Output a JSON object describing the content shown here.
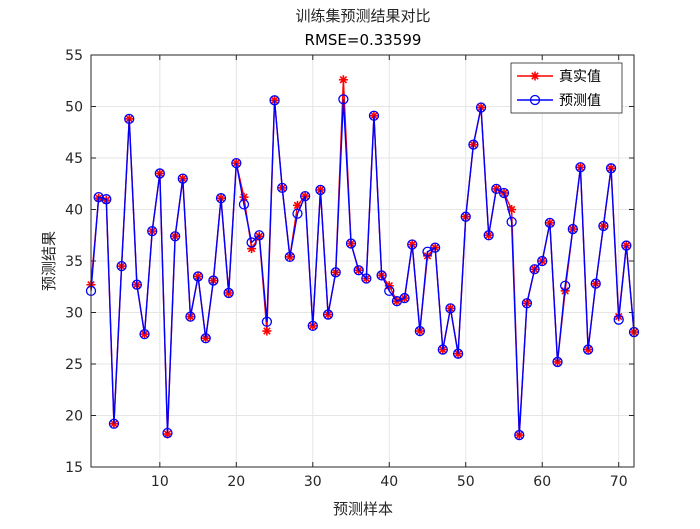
{
  "chart_data": {
    "type": "line",
    "title": "训练集预测结果对比",
    "subtitle": "RMSE=0.33599",
    "xlabel": "预测样本",
    "ylabel": "预测结果",
    "xlim": [
      1,
      72
    ],
    "ylim": [
      15,
      55
    ],
    "xticks": [
      10,
      20,
      30,
      40,
      50,
      60,
      70
    ],
    "yticks": [
      15,
      20,
      25,
      30,
      35,
      40,
      45,
      50,
      55
    ],
    "grid": true,
    "legend_position": "top-right",
    "x": [
      1,
      2,
      3,
      4,
      5,
      6,
      7,
      8,
      9,
      10,
      11,
      12,
      13,
      14,
      15,
      16,
      17,
      18,
      19,
      20,
      21,
      22,
      23,
      24,
      25,
      26,
      27,
      28,
      29,
      30,
      31,
      32,
      33,
      34,
      35,
      36,
      37,
      38,
      39,
      40,
      41,
      42,
      43,
      44,
      45,
      46,
      47,
      48,
      49,
      50,
      51,
      52,
      53,
      54,
      55,
      56,
      57,
      58,
      59,
      60,
      61,
      62,
      63,
      64,
      65,
      66,
      67,
      68,
      69,
      70,
      71,
      72
    ],
    "series": [
      {
        "name": "真实值",
        "color": "#ff0000",
        "marker": "asterisk",
        "values": [
          32.7,
          41.1,
          40.9,
          19.2,
          34.5,
          48.8,
          32.7,
          27.9,
          37.9,
          43.5,
          18.2,
          37.4,
          43.0,
          29.6,
          33.5,
          27.5,
          33.1,
          41.1,
          31.9,
          44.5,
          41.2,
          36.2,
          37.4,
          28.2,
          50.6,
          42.1,
          35.4,
          40.4,
          41.3,
          28.7,
          41.9,
          29.8,
          33.9,
          52.6,
          36.7,
          34.1,
          33.3,
          49.1,
          33.6,
          32.6,
          31.1,
          31.4,
          36.6,
          28.2,
          35.5,
          36.3,
          26.4,
          30.4,
          26.0,
          39.3,
          46.3,
          49.9,
          37.5,
          42.0,
          41.6,
          40.0,
          18.1,
          30.9,
          34.2,
          35.0,
          38.7,
          25.2,
          32.1,
          38.1,
          44.1,
          26.4,
          32.8,
          38.4,
          44.0,
          29.6,
          36.5,
          28.1
        ]
      },
      {
        "name": "预测值",
        "color": "#0000ff",
        "marker": "circle",
        "values": [
          32.1,
          41.2,
          41.0,
          19.2,
          34.5,
          48.8,
          32.7,
          27.9,
          37.9,
          43.5,
          18.3,
          37.4,
          43.0,
          29.6,
          33.5,
          27.5,
          33.1,
          41.1,
          31.9,
          44.5,
          40.5,
          36.8,
          37.5,
          29.1,
          50.6,
          42.1,
          35.4,
          39.6,
          41.3,
          28.7,
          41.9,
          29.8,
          33.9,
          50.7,
          36.7,
          34.1,
          33.3,
          49.1,
          33.6,
          32.1,
          31.1,
          31.4,
          36.6,
          28.2,
          35.9,
          36.3,
          26.4,
          30.4,
          26.0,
          39.3,
          46.3,
          49.9,
          37.5,
          42.0,
          41.6,
          38.8,
          18.1,
          30.9,
          34.2,
          35.0,
          38.7,
          25.2,
          32.6,
          38.1,
          44.1,
          26.4,
          32.8,
          38.4,
          44.0,
          29.3,
          36.5,
          28.1
        ]
      }
    ]
  }
}
